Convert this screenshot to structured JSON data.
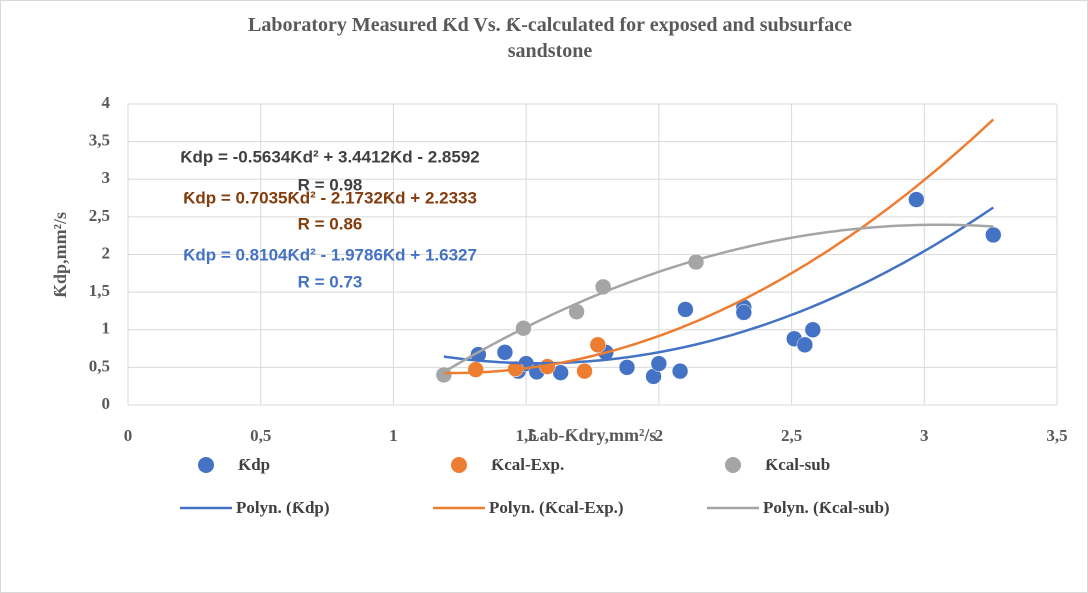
{
  "chart_data": {
    "type": "scatter",
    "title": "Laboratory Measured Ƙd Vs. Ƙ-calculated for exposed and subsurface sandstone",
    "x_label": "Lab-Ƙdry,mm²/s",
    "y_label": "Ƙdp,mm²/s",
    "xlim": [
      0,
      3.5
    ],
    "ylim": [
      0,
      4
    ],
    "xticks": [
      0,
      {
        "value": 0.5,
        "label": "0,5"
      },
      1,
      {
        "value": 1.5,
        "label": "1,5"
      },
      2,
      {
        "value": 2.5,
        "label": "2,5"
      },
      3,
      {
        "value": 3.5,
        "label": "3,5"
      }
    ],
    "yticks": [
      0,
      {
        "value": 0.5,
        "label": "0,5"
      },
      1,
      {
        "value": 1.5,
        "label": "1,5"
      },
      2,
      {
        "value": 2.5,
        "label": "2,5"
      },
      3,
      {
        "value": 3.5,
        "label": "3,5"
      },
      4
    ],
    "grid": true,
    "series": [
      {
        "name": "Ƙdp",
        "color": "#4472c4",
        "x": [
          1.32,
          1.42,
          1.47,
          1.5,
          1.54,
          1.63,
          1.8,
          1.88,
          1.98,
          2.0,
          2.08,
          2.1,
          2.32,
          2.32,
          2.51,
          2.55,
          2.58,
          2.97,
          3.26
        ],
        "values": [
          0.67,
          0.7,
          0.45,
          0.55,
          0.44,
          0.43,
          0.7,
          0.5,
          0.38,
          0.55,
          0.45,
          1.27,
          1.3,
          1.23,
          0.88,
          0.8,
          1.0,
          2.73,
          2.26
        ]
      },
      {
        "name": "Ƙcal-Exp.",
        "color": "#ed7d31",
        "x": [
          1.19,
          1.31,
          1.46,
          1.58,
          1.72,
          1.77
        ],
        "values": [
          0.4,
          0.47,
          0.48,
          0.51,
          0.45,
          0.8
        ]
      },
      {
        "name": "Ƙcal-sub",
        "color": "#a5a5a5",
        "x": [
          1.19,
          1.49,
          1.69,
          1.79,
          2.14
        ],
        "values": [
          0.4,
          1.02,
          1.24,
          1.57,
          1.9
        ]
      }
    ],
    "trendlines": [
      {
        "name": "Polyn. (Ƙdp)",
        "color": "#4472c4",
        "coefficients": [
          0.7035,
          -2.1732,
          2.2333
        ]
      },
      {
        "name": "Polyn. (Ƙcal-Exp.)",
        "color": "#ed7d31",
        "coefficients": [
          0.8104,
          -1.9786,
          1.6327
        ]
      },
      {
        "name": "Polyn. (Ƙcal-sub)",
        "color": "#a5a5a5",
        "coefficients": [
          -0.5634,
          3.4412,
          -2.8592
        ]
      }
    ],
    "annotations": [
      {
        "equation": "Ƙdp = -0.5634Ƙd² + 3.4412Ƙd - 2.8592",
        "r": "R = 0.98",
        "color": "#404040"
      },
      {
        "equation": "Ƙdp = 0.7035Ƙd² - 2.1732Ƙd + 2.2333",
        "r": "R = 0.86",
        "color": "#843c0c"
      },
      {
        "equation": "Ƙdp = 0.8104Ƙd² - 1.9786Ƙd + 1.6327",
        "r": "R = 0.73",
        "color": "#4472c4"
      }
    ]
  }
}
